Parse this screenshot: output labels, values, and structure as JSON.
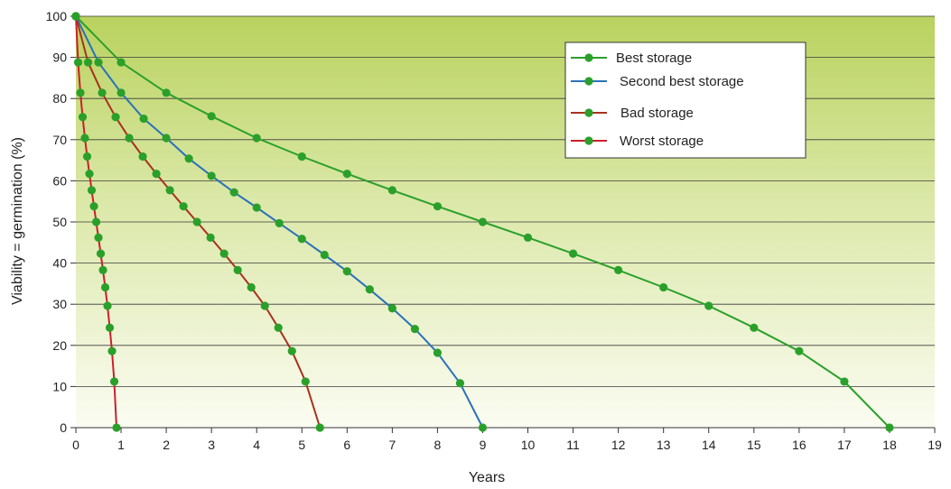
{
  "chart_data": {
    "type": "line",
    "xlabel": "Years",
    "ylabel": "Viability = germination (%)",
    "xlim": [
      0,
      19
    ],
    "ylim": [
      0,
      100
    ],
    "x_ticks": [
      0,
      1,
      2,
      3,
      4,
      5,
      6,
      7,
      8,
      9,
      10,
      11,
      12,
      13,
      14,
      15,
      16,
      17,
      18,
      19
    ],
    "y_ticks": [
      0,
      10,
      20,
      30,
      40,
      50,
      60,
      70,
      80,
      90,
      100
    ],
    "grid": "horizontal",
    "background": "vertical gradient, olive green at top fading to near-white at bottom",
    "legend_position": "top-right",
    "marker_color": "#2aa02a",
    "series": [
      {
        "name": "Best storage",
        "color": "#2aa02a",
        "points": [
          [
            0,
            100
          ],
          [
            1,
            88.8
          ],
          [
            2,
            81.4
          ],
          [
            3,
            75.7
          ],
          [
            4,
            70.4
          ],
          [
            5,
            65.9
          ],
          [
            6,
            61.7
          ],
          [
            7,
            57.7
          ],
          [
            8,
            53.8
          ],
          [
            9,
            50
          ],
          [
            10,
            46.2
          ],
          [
            11,
            42.3
          ],
          [
            12,
            38.3
          ],
          [
            13,
            34.1
          ],
          [
            14,
            29.6
          ],
          [
            15,
            24.3
          ],
          [
            16,
            18.6
          ],
          [
            17,
            11.2
          ],
          [
            18,
            0
          ]
        ]
      },
      {
        "name": "Second best storage",
        "color": "#2a72b8",
        "points": [
          [
            0,
            100
          ],
          [
            0.5,
            88.8
          ],
          [
            1,
            81.4
          ],
          [
            1.5,
            75.1
          ],
          [
            2,
            70.4
          ],
          [
            2.5,
            65.4
          ],
          [
            3,
            61.2
          ],
          [
            3.5,
            57.2
          ],
          [
            4,
            53.5
          ],
          [
            4.5,
            49.7
          ],
          [
            5,
            45.9
          ],
          [
            5.5,
            42
          ],
          [
            6,
            38
          ],
          [
            6.5,
            33.6
          ],
          [
            7,
            29
          ],
          [
            7.5,
            24
          ],
          [
            8,
            18.2
          ],
          [
            8.5,
            10.8
          ],
          [
            9,
            0
          ]
        ]
      },
      {
        "name": "Bad storage",
        "color": "#a8321e",
        "points": [
          [
            0,
            100
          ],
          [
            0.27,
            88.8
          ],
          [
            0.58,
            81.4
          ],
          [
            0.88,
            75.5
          ],
          [
            1.18,
            70.4
          ],
          [
            1.48,
            65.9
          ],
          [
            1.78,
            61.7
          ],
          [
            2.08,
            57.7
          ],
          [
            2.38,
            53.8
          ],
          [
            2.68,
            50
          ],
          [
            2.98,
            46.2
          ],
          [
            3.28,
            42.3
          ],
          [
            3.58,
            38.3
          ],
          [
            3.88,
            34.1
          ],
          [
            4.18,
            29.6
          ],
          [
            4.48,
            24.3
          ],
          [
            4.78,
            18.6
          ],
          [
            5.08,
            11.2
          ],
          [
            5.4,
            0
          ]
        ]
      },
      {
        "name": "Worst storage",
        "color": "#cc1f2b",
        "points": [
          [
            0,
            100
          ],
          [
            0.05,
            88.8
          ],
          [
            0.1,
            81.4
          ],
          [
            0.15,
            75.5
          ],
          [
            0.2,
            70.4
          ],
          [
            0.25,
            65.9
          ],
          [
            0.3,
            61.7
          ],
          [
            0.35,
            57.7
          ],
          [
            0.4,
            53.8
          ],
          [
            0.45,
            50
          ],
          [
            0.5,
            46.2
          ],
          [
            0.55,
            42.3
          ],
          [
            0.6,
            38.3
          ],
          [
            0.65,
            34.1
          ],
          [
            0.7,
            29.6
          ],
          [
            0.75,
            24.3
          ],
          [
            0.8,
            18.6
          ],
          [
            0.85,
            11.2
          ],
          [
            0.9,
            0
          ]
        ]
      }
    ]
  }
}
